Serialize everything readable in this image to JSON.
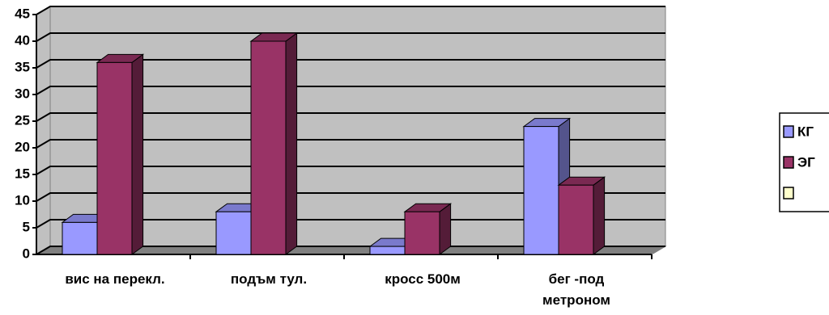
{
  "chart_data": {
    "type": "bar3d",
    "categories": [
      "вис на перекл.",
      "подъм тул.",
      "кросс 500м",
      "бег -под\nметроном"
    ],
    "series": [
      {
        "name": "КГ",
        "color": "#9999ff",
        "values": [
          6,
          8,
          1.5,
          24
        ]
      },
      {
        "name": "ЭГ",
        "color": "#993366",
        "values": [
          36,
          40,
          8,
          13
        ]
      },
      {
        "color": "#ffffcc"
      }
    ],
    "ylim": [
      0,
      45
    ],
    "yticks": [
      0,
      5,
      10,
      15,
      20,
      25,
      30,
      35,
      40,
      45
    ],
    "grid": true,
    "legend": "right"
  }
}
